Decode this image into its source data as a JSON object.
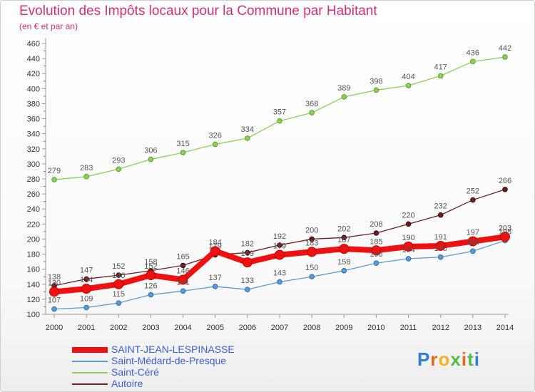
{
  "header": {
    "title": "Evolution des Impôts locaux pour la Commune par Habitant",
    "subtitle": "(en € et par an)"
  },
  "logo": {
    "text": "Proxiti"
  },
  "colors": {
    "text_accent": "#d4306e",
    "legend_text": "#3c5fd6"
  },
  "chart_data": {
    "type": "line",
    "title": "Evolution des Impôts locaux pour la Commune par Habitant",
    "subtitle": "(en € et par an)",
    "xlabel": "",
    "ylabel": "",
    "x": [
      2000,
      2001,
      2002,
      2003,
      2004,
      2005,
      2006,
      2007,
      2008,
      2009,
      2010,
      2011,
      2012,
      2013,
      2014
    ],
    "ylim": [
      100,
      460
    ],
    "yticks": [
      100,
      120,
      140,
      160,
      180,
      200,
      220,
      240,
      260,
      280,
      300,
      320,
      340,
      360,
      380,
      400,
      420,
      440,
      460
    ],
    "grid": false,
    "legend_position": "bottom-left",
    "series": [
      {
        "name": "SAINT-JEAN-LESPINASSE",
        "color": "#ee1111",
        "values": [
          130,
          134,
          140,
          152,
          146,
          184,
          169,
          179,
          183,
          187,
          185,
          190,
          191,
          197,
          203
        ]
      },
      {
        "name": "Saint-Médard-de-Presque",
        "color": "#5b9bd5",
        "values": [
          107,
          109,
          115,
          126,
          131,
          137,
          133,
          143,
          150,
          158,
          168,
          174,
          176,
          184,
          198
        ]
      },
      {
        "name": "Saint-Céré",
        "color": "#8ccf5a",
        "values": [
          279,
          283,
          293,
          306,
          315,
          326,
          334,
          357,
          368,
          389,
          398,
          404,
          417,
          436,
          442
        ]
      },
      {
        "name": "Autoire",
        "color": "#6b1f1f",
        "values": [
          138,
          147,
          152,
          158,
          165,
          179,
          182,
          192,
          200,
          202,
          208,
          220,
          232,
          252,
          266
        ]
      }
    ]
  }
}
